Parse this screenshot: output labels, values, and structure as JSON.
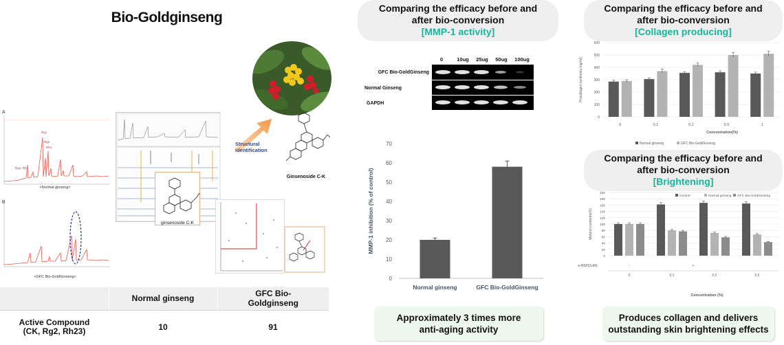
{
  "title": "Bio-Goldginseng",
  "left": {
    "hplc_a_letter": "A",
    "hplc_a_caption": "<Normal ginseng>",
    "hplc_a_peaks": [
      "Rg1",
      "Rg2",
      "Rh1",
      "Rg1, Re"
    ],
    "hplc_b_letter": "B",
    "hplc_b_caption": "<GFC Bio-GoldGinseng>",
    "structural_label": "Structural identification",
    "ginsenoside_label": "Ginsenoside C-K",
    "ginsenoside_small_label": "ginsenoside C-K"
  },
  "table": {
    "col_headers": [
      "Normal ginseng",
      "GFC Bio-Goldginseng"
    ],
    "row_label_line1": "Active Compound",
    "row_label_line2": "(CK, Rg2, Rh23)",
    "values": [
      "10",
      "91"
    ]
  },
  "mmp": {
    "header_line1": "Comparing the efficacy before and",
    "header_line2": "after bio-conversion",
    "header_accent": "[MMP-1 activity]",
    "blot": {
      "concentrations": [
        "0",
        "10ug",
        "25ug",
        "50ug",
        "100ug"
      ],
      "lanes": [
        "GFC Bio-GoldGinseng",
        "Normal Ginseng",
        "GAPDH"
      ]
    },
    "summary_line1": "Approximately 3 times more",
    "summary_line2": "anti-aging activity"
  },
  "collagen": {
    "header_line1": "Comparing the efficacy before and",
    "header_line2": "after bio-conversion",
    "header_accent": "[Collagen producing]"
  },
  "brightening": {
    "header_line1": "Comparing the efficacy before and",
    "header_line2": "after bio-conversion",
    "header_accent": "[Brightening]",
    "alpha_msh_label": "a-MSH(1uM)",
    "alpha_msh_values": [
      "-",
      "+"
    ],
    "summary_line1": "Produces collagen and delivers",
    "summary_line2": "outstanding skin brightening effects"
  },
  "colors": {
    "accent": "#19b39b",
    "dark_bar": "#595959",
    "light_bar": "#b3b3b3",
    "mid_bar": "#8c8c8c",
    "hplc_red": "#e8574c",
    "highlight_circle": "#1a3a9a"
  },
  "chart_data": [
    {
      "type": "bar",
      "title": "",
      "categories": [
        "Normal ginseng",
        "GFC Bio-GoldGinseng"
      ],
      "values": [
        20,
        58
      ],
      "errors": [
        1,
        3
      ],
      "ylabel": "MMP-1 inhibition (% of control)",
      "ylim": [
        0,
        70
      ],
      "yticks": [
        0,
        10,
        20,
        30,
        40,
        50,
        60,
        70
      ],
      "grid": false
    },
    {
      "type": "bar",
      "title": "",
      "categories": [
        "0",
        "0.1",
        "0.2",
        "0.5",
        "1"
      ],
      "series": [
        {
          "name": "Normal ginseng",
          "values": [
            285,
            305,
            355,
            360,
            350
          ]
        },
        {
          "name": "GFC Bio-GoldGinseng",
          "values": [
            290,
            370,
            420,
            500,
            510
          ]
        }
      ],
      "errors": [
        [
          10,
          10,
          10,
          12,
          12
        ],
        [
          10,
          15,
          15,
          20,
          20
        ]
      ],
      "xlabel": "Concentration(%)",
      "ylabel": "Procollagen synthesis (ng/ml)",
      "ylim": [
        0,
        600
      ],
      "yticks": [
        0,
        100,
        200,
        300,
        400,
        500,
        600
      ],
      "grid": true,
      "legend": "bottom-left"
    },
    {
      "type": "bar",
      "title": "",
      "categories": [
        "0",
        "0.1",
        "0.2",
        "0.5"
      ],
      "series": [
        {
          "name": "Control",
          "values": [
            100,
            162,
            167,
            165
          ]
        },
        {
          "name": "Normal ginseng",
          "values": [
            100,
            80,
            72,
            67
          ]
        },
        {
          "name": "GFC Bio-GoldGinseng",
          "values": [
            100,
            77,
            58,
            43
          ]
        }
      ],
      "errors": [
        [
          4,
          6,
          6,
          6
        ],
        [
          4,
          3,
          3,
          3
        ],
        [
          4,
          3,
          3,
          2
        ]
      ],
      "xlabel": "Concentration (%)",
      "ylabel": "Melanin contents(%)",
      "ylim": [
        0,
        200
      ],
      "yticks": [
        0,
        20,
        40,
        60,
        80,
        100,
        120,
        140,
        160,
        180,
        200
      ],
      "grid": true,
      "legend": "top"
    }
  ]
}
